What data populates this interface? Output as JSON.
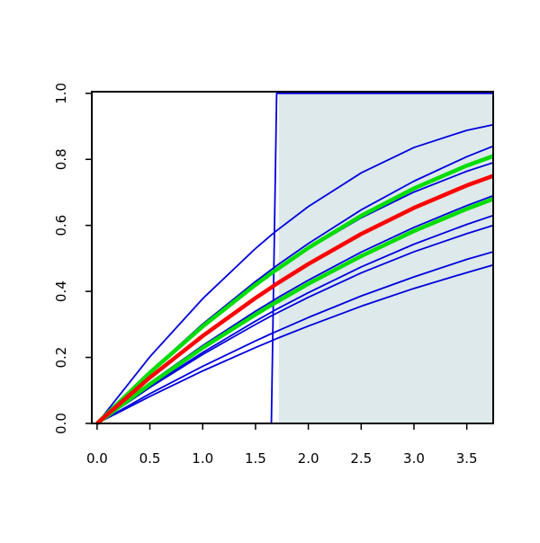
{
  "chart_data": {
    "type": "line",
    "x": [
      0,
      0.5,
      1,
      1.5,
      1.65,
      1.7,
      2,
      2.5,
      3,
      3.5,
      3.75
    ],
    "xlim": [
      -0.05,
      3.75
    ],
    "ylim": [
      0,
      1.005
    ],
    "xticks": [
      {
        "value": 0,
        "label": "0.0"
      },
      {
        "value": 0.5,
        "label": "0.5"
      },
      {
        "value": 1,
        "label": "1.0"
      },
      {
        "value": 1.5,
        "label": "1.5"
      },
      {
        "value": 2,
        "label": "2.0"
      },
      {
        "value": 2.5,
        "label": "2.5"
      },
      {
        "value": 3,
        "label": "3.0"
      },
      {
        "value": 3.5,
        "label": "3.5"
      }
    ],
    "yticks": [
      {
        "value": 0,
        "label": "0.0"
      },
      {
        "value": 0.2,
        "label": "0.2"
      },
      {
        "value": 0.4,
        "label": "0.4"
      },
      {
        "value": 0.6,
        "label": "0.6"
      },
      {
        "value": 0.8,
        "label": "0.8"
      },
      {
        "value": 1,
        "label": "1.0"
      }
    ],
    "shade": {
      "xlim": [
        1.72,
        3.75
      ],
      "ylim": [
        0,
        1
      ],
      "color": "#dde9ea"
    },
    "series": [
      {
        "color": "#0000dd",
        "values": [
          0,
          0,
          0,
          0,
          0,
          1,
          1,
          1,
          1,
          1,
          1
        ]
      },
      {
        "color": "#0000dd",
        "values": [
          0,
          0.202,
          0.378,
          0.53,
          0.571,
          0.584,
          0.657,
          0.759,
          0.836,
          0.888,
          0.905
        ]
      },
      {
        "color": "#0000dd",
        "values": [
          0,
          0.157,
          0.301,
          0.43,
          0.466,
          0.478,
          0.545,
          0.647,
          0.734,
          0.808,
          0.84
        ]
      },
      {
        "color": "#0000dd",
        "values": [
          0,
          0.155,
          0.295,
          0.42,
          0.454,
          0.466,
          0.529,
          0.623,
          0.701,
          0.764,
          0.79
        ]
      },
      {
        "color": "#0000dd",
        "values": [
          0,
          0.123,
          0.236,
          0.34,
          0.369,
          0.379,
          0.434,
          0.519,
          0.594,
          0.66,
          0.69
        ]
      },
      {
        "color": "#0000dd",
        "values": [
          0,
          0.112,
          0.215,
          0.31,
          0.337,
          0.346,
          0.396,
          0.474,
          0.543,
          0.603,
          0.63
        ]
      },
      {
        "color": "#0000dd",
        "values": [
          0,
          0.109,
          0.209,
          0.3,
          0.326,
          0.334,
          0.382,
          0.456,
          0.52,
          0.575,
          0.6
        ]
      },
      {
        "color": "#0000dd",
        "values": [
          0,
          0.09,
          0.173,
          0.25,
          0.272,
          0.279,
          0.321,
          0.386,
          0.444,
          0.497,
          0.52
        ]
      },
      {
        "color": "#0000dd",
        "values": [
          0,
          0.082,
          0.159,
          0.23,
          0.25,
          0.257,
          0.295,
          0.355,
          0.409,
          0.457,
          0.48
        ]
      },
      {
        "color": "#00dd00",
        "values": [
          0,
          0.154,
          0.294,
          0.42,
          0.455,
          0.466,
          0.532,
          0.629,
          0.712,
          0.781,
          0.81
        ]
      },
      {
        "color": "#00dd00",
        "values": [
          0,
          0.119,
          0.229,
          0.33,
          0.359,
          0.368,
          0.423,
          0.507,
          0.583,
          0.65,
          0.68
        ]
      },
      {
        "color": "#ff0000",
        "values": [
          0,
          0.139,
          0.265,
          0.38,
          0.412,
          0.423,
          0.483,
          0.574,
          0.653,
          0.721,
          0.75
        ]
      }
    ]
  }
}
